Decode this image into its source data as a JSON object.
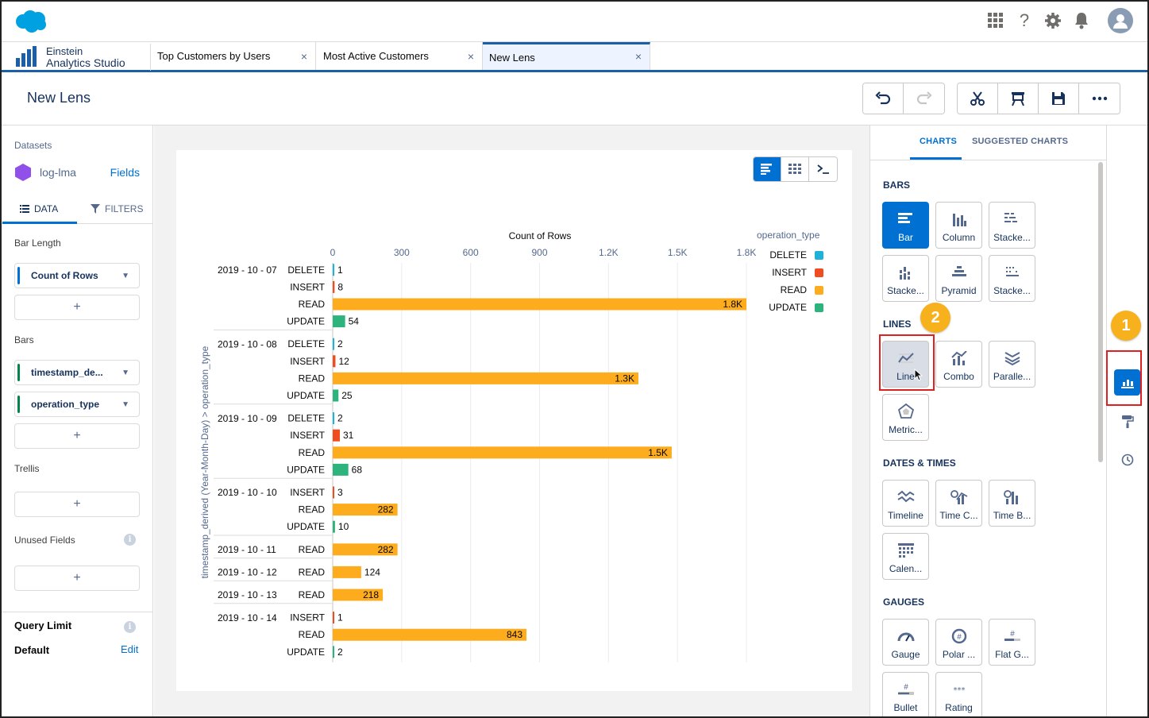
{
  "global_header": {
    "icons": [
      "app-launcher-icon",
      "help-icon",
      "gear-icon",
      "bell-icon",
      "avatar-icon"
    ],
    "help_glyph": "?"
  },
  "app": {
    "name_line1": "Einstein",
    "name_line2": "Analytics Studio"
  },
  "tabs": [
    {
      "label": "Top Customers by Users",
      "close": "×"
    },
    {
      "label": "Most Active Customers",
      "close": "×"
    },
    {
      "label": "New Lens",
      "close": "×",
      "active": true
    }
  ],
  "page": {
    "title": "New Lens"
  },
  "left_panel": {
    "datasets_label": "Datasets",
    "dataset_name": "log-lma",
    "fields_link": "Fields",
    "tab_data": "DATA",
    "tab_filters": "FILTERS",
    "bar_length_label": "Bar Length",
    "bar_length_pill": "Count of Rows",
    "bars_label": "Bars",
    "bars_pills": [
      "timestamp_de...",
      "operation_type"
    ],
    "trellis_label": "Trellis",
    "unused_label": "Unused Fields",
    "query_limit_label": "Query Limit",
    "default_label": "Default",
    "edit_link": "Edit",
    "add": "+",
    "info": "i",
    "pill_colors": {
      "measure": "#0070d2",
      "dimension": "#04844b"
    }
  },
  "chart_data": {
    "type": "bar",
    "orientation": "horizontal",
    "title": "Count of Rows",
    "xlim": [
      0,
      1800
    ],
    "x_ticks": [
      "0",
      "300",
      "600",
      "900",
      "1.2K",
      "1.5K",
      "1.8K"
    ],
    "x_tick_values": [
      0,
      300,
      600,
      900,
      1200,
      1500,
      1800
    ],
    "ylabel": "timestamp_derived (Year-Month-Day) > operation_type",
    "legend_title": "operation_type",
    "legend": [
      {
        "name": "DELETE",
        "color": "#1fb2d9"
      },
      {
        "name": "INSERT",
        "color": "#ef4c1f"
      },
      {
        "name": "READ",
        "color": "#fcac1c"
      },
      {
        "name": "UPDATE",
        "color": "#2db47d"
      }
    ],
    "groups": [
      {
        "date": "2019 - 10 - 07",
        "rows": [
          {
            "type": "DELETE",
            "value": 1,
            "label": "1"
          },
          {
            "type": "INSERT",
            "value": 8,
            "label": "8"
          },
          {
            "type": "READ",
            "value": 1800,
            "label": "1.8K"
          },
          {
            "type": "UPDATE",
            "value": 54,
            "label": "54"
          }
        ]
      },
      {
        "date": "2019 - 10 - 08",
        "rows": [
          {
            "type": "DELETE",
            "value": 2,
            "label": "2"
          },
          {
            "type": "INSERT",
            "value": 12,
            "label": "12"
          },
          {
            "type": "READ",
            "value": 1330,
            "label": "1.3K"
          },
          {
            "type": "UPDATE",
            "value": 25,
            "label": "25"
          }
        ]
      },
      {
        "date": "2019 - 10 - 09",
        "rows": [
          {
            "type": "DELETE",
            "value": 2,
            "label": "2"
          },
          {
            "type": "INSERT",
            "value": 31,
            "label": "31"
          },
          {
            "type": "READ",
            "value": 1475,
            "label": "1.5K"
          },
          {
            "type": "UPDATE",
            "value": 68,
            "label": "68"
          }
        ]
      },
      {
        "date": "2019 - 10 - 10",
        "rows": [
          {
            "type": "INSERT",
            "value": 3,
            "label": "3"
          },
          {
            "type": "READ",
            "value": 282,
            "label": "282"
          },
          {
            "type": "UPDATE",
            "value": 10,
            "label": "10"
          }
        ]
      },
      {
        "date": "2019 - 10 - 11",
        "rows": [
          {
            "type": "READ",
            "value": 282,
            "label": "282"
          }
        ]
      },
      {
        "date": "2019 - 10 - 12",
        "rows": [
          {
            "type": "READ",
            "value": 124,
            "label": "124"
          }
        ]
      },
      {
        "date": "2019 - 10 - 13",
        "rows": [
          {
            "type": "READ",
            "value": 218,
            "label": "218"
          }
        ]
      },
      {
        "date": "2019 - 10 - 14",
        "rows": [
          {
            "type": "INSERT",
            "value": 1,
            "label": "1"
          },
          {
            "type": "READ",
            "value": 843,
            "label": "843"
          },
          {
            "type": "UPDATE",
            "value": 2,
            "label": "2"
          }
        ]
      }
    ]
  },
  "right_panel": {
    "tab_charts": "CHARTS",
    "tab_suggested": "SUGGESTED CHARTS",
    "sections": {
      "bars": "BARS",
      "lines": "LINES",
      "dates": "DATES & TIMES",
      "gauges": "GAUGES"
    },
    "bars_tiles": [
      "Bar",
      "Column",
      "Stacke...",
      "Stacke...",
      "Pyramid",
      "Stacke..."
    ],
    "lines_tiles": [
      "Line",
      "Combo",
      "Paralle...",
      "Metric..."
    ],
    "dates_tiles": [
      "Timeline",
      "Time C...",
      "Time B...",
      "Calen..."
    ],
    "gauges_tiles": [
      "Gauge",
      "Polar ...",
      "Flat G...",
      "Bullet",
      "Rating"
    ]
  },
  "annotations": {
    "badge1": "1",
    "badge2": "2",
    "badge_color": "#f7b11c",
    "box_color": "#e02020"
  },
  "colors": {
    "accent": "#0070d2",
    "brand_line": "#1b5fa8"
  }
}
